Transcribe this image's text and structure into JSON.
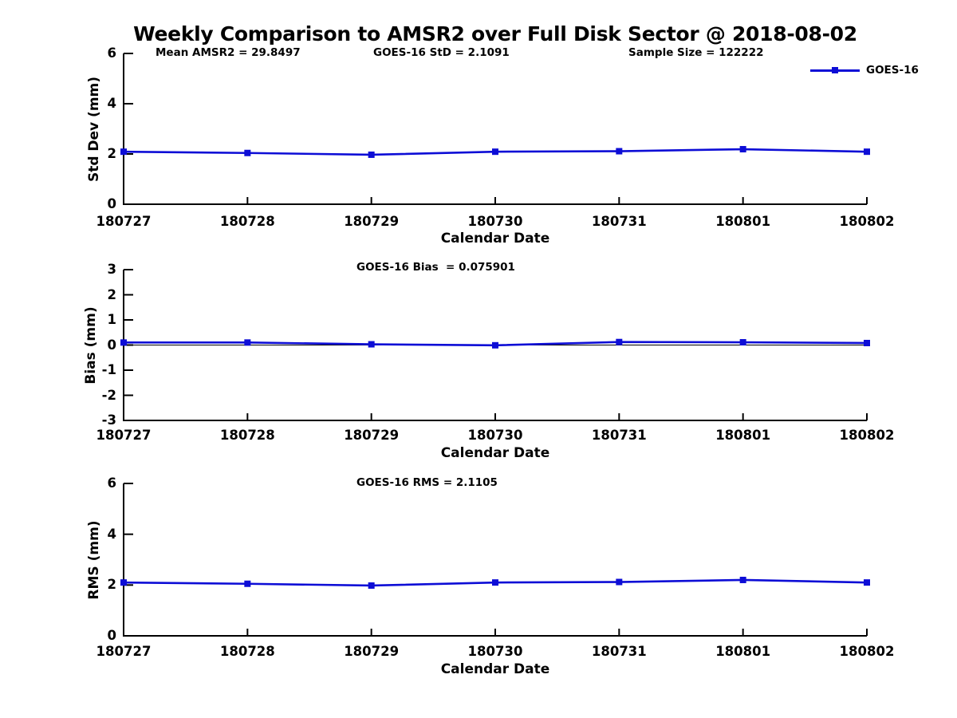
{
  "title": "Weekly Comparison to AMSR2 over Full Disk Sector @ 2018-08-02",
  "accent_color": "#0d0dd6",
  "axis_color": "#000000",
  "legend": {
    "label": "GOES-16",
    "position": "top-right"
  },
  "xlabel": "Calendar Date",
  "categories": [
    "180727",
    "180728",
    "180729",
    "180730",
    "180731",
    "180801",
    "180802"
  ],
  "chart_data": [
    {
      "type": "line",
      "name": "std-dev-plot",
      "categories": [
        "180727",
        "180728",
        "180729",
        "180730",
        "180731",
        "180801",
        "180802"
      ],
      "series": [
        {
          "name": "GOES-16",
          "values": [
            2.09,
            2.04,
            1.97,
            2.09,
            2.11,
            2.19,
            2.09
          ]
        }
      ],
      "xlabel": "Calendar Date",
      "ylabel": "Std Dev (mm)",
      "ylim": [
        0,
        6
      ],
      "yticks": [
        "0",
        "2",
        "4",
        "6"
      ],
      "grid": false,
      "zero_line": false,
      "legend_visible": true,
      "annotations": [
        "Mean AMSR2 = 29.8497",
        "GOES-16 StD = 2.1091",
        "Sample Size = 122222"
      ]
    },
    {
      "type": "line",
      "name": "bias-plot",
      "categories": [
        "180727",
        "180728",
        "180729",
        "180730",
        "180731",
        "180801",
        "180802"
      ],
      "series": [
        {
          "name": "GOES-16",
          "values": [
            0.1,
            0.1,
            0.03,
            -0.01,
            0.12,
            0.11,
            0.08
          ]
        }
      ],
      "xlabel": "Calendar Date",
      "ylabel": "Bias (mm)",
      "ylim": [
        -3,
        3
      ],
      "yticks": [
        "-3",
        "-2",
        "-1",
        "0",
        "1",
        "2",
        "3"
      ],
      "grid": false,
      "zero_line": true,
      "legend_visible": false,
      "annotations": [
        "GOES-16 Bias  = 0.075901"
      ]
    },
    {
      "type": "line",
      "name": "rms-plot",
      "categories": [
        "180727",
        "180728",
        "180729",
        "180730",
        "180731",
        "180801",
        "180802"
      ],
      "series": [
        {
          "name": "GOES-16",
          "values": [
            2.1,
            2.05,
            1.98,
            2.1,
            2.12,
            2.2,
            2.1
          ]
        }
      ],
      "xlabel": "Calendar Date",
      "ylabel": "RMS (mm)",
      "ylim": [
        0,
        6
      ],
      "yticks": [
        "0",
        "2",
        "4",
        "6"
      ],
      "grid": false,
      "zero_line": false,
      "legend_visible": false,
      "annotations": [
        "GOES-16 RMS = 2.1105"
      ]
    }
  ]
}
